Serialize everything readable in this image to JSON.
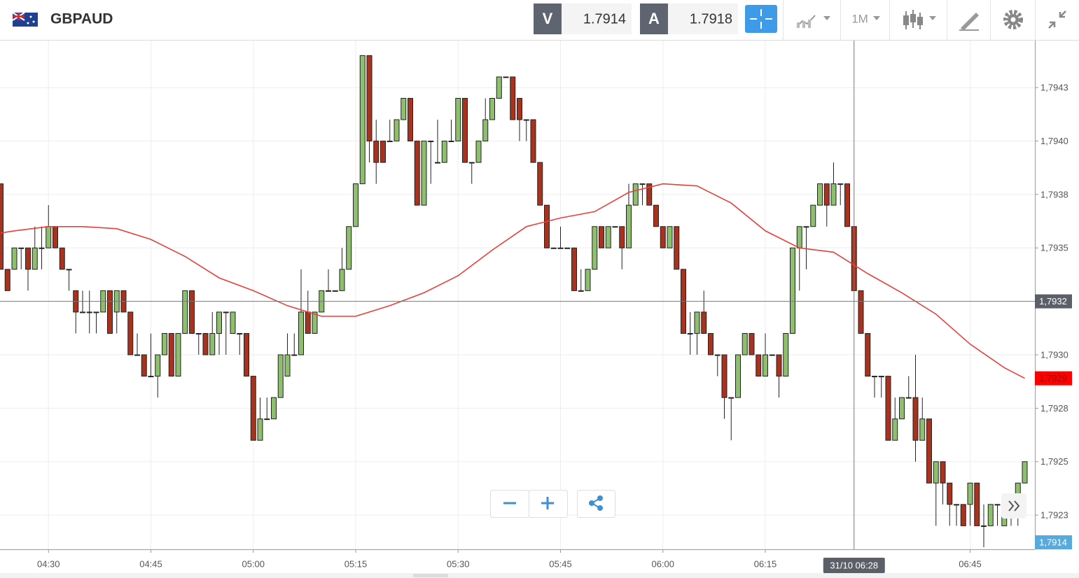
{
  "header": {
    "symbol": "GBPAUD",
    "sell_label": "V",
    "sell": "1.7914",
    "buy_label": "A",
    "buy": "1.7918",
    "timeframe": "1M"
  },
  "chart_data": {
    "type": "candlestick",
    "up_color": "#8dbf6e",
    "down_color": "#a8321d",
    "categories": [
      "04:23",
      "04:24",
      "04:25",
      "04:26",
      "04:27",
      "04:28",
      "04:29",
      "04:30",
      "04:31",
      "04:32",
      "04:33",
      "04:34",
      "04:35",
      "04:36",
      "04:37",
      "04:38",
      "04:39",
      "04:40",
      "04:41",
      "04:42",
      "04:43",
      "04:44",
      "04:45",
      "04:46",
      "04:47",
      "04:48",
      "04:49",
      "04:50",
      "04:51",
      "04:52",
      "04:53",
      "04:54",
      "04:55",
      "04:56",
      "04:57",
      "04:58",
      "04:59",
      "05:00",
      "05:01",
      "05:02",
      "05:03",
      "05:04",
      "05:05",
      "05:06",
      "05:07",
      "05:08",
      "05:09",
      "05:10",
      "05:11",
      "05:12",
      "05:13",
      "05:14",
      "05:15",
      "05:16",
      "05:17",
      "05:18",
      "05:19",
      "05:20",
      "05:21",
      "05:22",
      "05:23",
      "05:24",
      "05:25",
      "05:26",
      "05:27",
      "05:28",
      "05:29",
      "05:30",
      "05:31",
      "05:32",
      "05:33",
      "05:34",
      "05:35",
      "05:36",
      "05:37",
      "05:38",
      "05:39",
      "05:40",
      "05:41",
      "05:42",
      "05:43",
      "05:44",
      "05:45",
      "05:46",
      "05:47",
      "05:48",
      "05:49",
      "05:50",
      "05:51",
      "05:52",
      "05:53",
      "05:54",
      "05:55",
      "05:56",
      "05:57",
      "05:58",
      "05:59",
      "06:00",
      "06:01",
      "06:02",
      "06:03",
      "06:04",
      "06:05",
      "06:06",
      "06:07",
      "06:08",
      "06:09",
      "06:10",
      "06:11",
      "06:12",
      "06:13",
      "06:14",
      "06:15",
      "06:16",
      "06:17",
      "06:18",
      "06:19",
      "06:20",
      "06:21",
      "06:22",
      "06:23",
      "06:24",
      "06:25",
      "06:26",
      "06:27",
      "06:28",
      "06:29",
      "06:30",
      "06:31",
      "06:32",
      "06:33",
      "06:34",
      "06:35",
      "06:36",
      "06:37",
      "06:38",
      "06:39",
      "06:40",
      "06:41",
      "06:42",
      "06:43",
      "06:44",
      "06:45",
      "06:46",
      "06:47",
      "06:48",
      "06:49",
      "06:50",
      "06:51",
      "06:52",
      "06:53"
    ],
    "open": [
      1.7938,
      1.7934,
      1.7934,
      1.7935,
      1.7935,
      1.7934,
      1.7935,
      1.7935,
      1.7936,
      1.7935,
      1.7934,
      1.7933,
      1.7932,
      1.7932,
      1.7932,
      1.7932,
      1.7933,
      1.7932,
      1.7933,
      1.7932,
      1.793,
      1.793,
      1.7929,
      1.7929,
      1.793,
      1.7931,
      1.7929,
      1.7931,
      1.7933,
      1.7931,
      1.7931,
      1.793,
      1.7931,
      1.7932,
      1.7931,
      1.7931,
      1.7931,
      1.7929,
      1.7926,
      1.7927,
      1.7927,
      1.7928,
      1.7929,
      1.793,
      1.793,
      1.7932,
      1.7931,
      1.7932,
      1.7933,
      1.7933,
      1.7933,
      1.7934,
      1.7936,
      1.7938,
      1.7944,
      1.794,
      1.794,
      1.794,
      1.794,
      1.7941,
      1.7942,
      1.794,
      1.7937,
      1.794,
      1.7939,
      1.7939,
      1.794,
      1.794,
      1.7942,
      1.7939,
      1.7939,
      1.794,
      1.7941,
      1.7942,
      1.7943,
      1.7943,
      1.7942,
      1.7941,
      1.7941,
      1.7939,
      1.7937,
      1.7935,
      1.7935,
      1.7935,
      1.7935,
      1.7933,
      1.7933,
      1.7934,
      1.7936,
      1.7935,
      1.7936,
      1.7936,
      1.7935,
      1.7937,
      1.7938,
      1.7938,
      1.7937,
      1.7936,
      1.7935,
      1.7936,
      1.7934,
      1.7931,
      1.7931,
      1.7932,
      1.7931,
      1.793,
      1.793,
      1.7928,
      1.7928,
      1.793,
      1.7931,
      1.793,
      1.7929,
      1.793,
      1.793,
      1.7929,
      1.7931,
      1.7935,
      1.7936,
      1.7936,
      1.7937,
      1.7938,
      1.7937,
      1.7938,
      1.7938,
      1.7936,
      1.7933,
      1.7931,
      1.7929,
      1.7929,
      1.7929,
      1.7926,
      1.7927,
      1.7928,
      1.7928,
      1.7926,
      1.7927,
      1.7924,
      1.7925,
      1.7924,
      1.7923,
      1.7923,
      1.7923,
      1.7924,
      1.7922,
      1.7922,
      1.7923,
      1.7922,
      1.7923,
      1.7923,
      1.7924
    ],
    "high": [
      1.7938,
      1.7934,
      1.7935,
      1.7935,
      1.7935,
      1.7936,
      1.7936,
      1.7937,
      1.7936,
      1.7935,
      1.7934,
      1.7933,
      1.7933,
      1.7933,
      1.7932,
      1.7933,
      1.7933,
      1.7933,
      1.7933,
      1.7932,
      1.7931,
      1.793,
      1.7931,
      1.793,
      1.7931,
      1.7931,
      1.7931,
      1.7933,
      1.7933,
      1.7931,
      1.7931,
      1.7932,
      1.7932,
      1.7932,
      1.7932,
      1.7931,
      1.7931,
      1.7929,
      1.7928,
      1.7928,
      1.7928,
      1.793,
      1.7931,
      1.7931,
      1.7934,
      1.7933,
      1.7932,
      1.7933,
      1.7934,
      1.7933,
      1.7935,
      1.7936,
      1.7938,
      1.7944,
      1.7944,
      1.7941,
      1.794,
      1.7941,
      1.7941,
      1.7942,
      1.7942,
      1.794,
      1.794,
      1.794,
      1.7941,
      1.794,
      1.7941,
      1.7942,
      1.7942,
      1.7939,
      1.794,
      1.7942,
      1.7942,
      1.7943,
      1.7943,
      1.7943,
      1.7942,
      1.7941,
      1.7941,
      1.7939,
      1.7937,
      1.7935,
      1.7936,
      1.7935,
      1.7935,
      1.7934,
      1.7934,
      1.7936,
      1.7936,
      1.7936,
      1.7936,
      1.7936,
      1.7938,
      1.7938,
      1.7938,
      1.7938,
      1.7937,
      1.7936,
      1.7936,
      1.7936,
      1.7934,
      1.7932,
      1.7932,
      1.7933,
      1.7931,
      1.793,
      1.793,
      1.7928,
      1.793,
      1.7931,
      1.7931,
      1.793,
      1.7931,
      1.793,
      1.793,
      1.7931,
      1.7935,
      1.7936,
      1.7936,
      1.7937,
      1.7938,
      1.7938,
      1.7939,
      1.7938,
      1.7938,
      1.7936,
      1.7933,
      1.7931,
      1.7929,
      1.7929,
      1.7929,
      1.7928,
      1.7928,
      1.7929,
      1.793,
      1.7928,
      1.7927,
      1.7925,
      1.7925,
      1.7924,
      1.7923,
      1.7923,
      1.7924,
      1.7924,
      1.7923,
      1.7923,
      1.7923,
      1.7923,
      1.7923,
      1.7924,
      1.7925
    ],
    "low": [
      1.7934,
      1.7933,
      1.7934,
      1.7934,
      1.7933,
      1.7934,
      1.7934,
      1.7935,
      1.7935,
      1.7934,
      1.7933,
      1.7931,
      1.7932,
      1.7931,
      1.7931,
      1.7932,
      1.7931,
      1.7931,
      1.7932,
      1.793,
      1.793,
      1.7929,
      1.7929,
      1.7928,
      1.793,
      1.7929,
      1.7929,
      1.7931,
      1.7931,
      1.793,
      1.793,
      1.793,
      1.793,
      1.793,
      1.7931,
      1.793,
      1.7929,
      1.7926,
      1.7926,
      1.7927,
      1.7927,
      1.7928,
      1.7929,
      1.793,
      1.793,
      1.7931,
      1.7931,
      1.7932,
      1.7933,
      1.7933,
      1.7933,
      1.7934,
      1.7936,
      1.7938,
      1.7939,
      1.7938,
      1.7939,
      1.794,
      1.794,
      1.7941,
      1.794,
      1.7937,
      1.7937,
      1.7938,
      1.7939,
      1.7939,
      1.794,
      1.794,
      1.7939,
      1.7938,
      1.7939,
      1.794,
      1.7941,
      1.7942,
      1.7943,
      1.7941,
      1.794,
      1.794,
      1.7939,
      1.7937,
      1.7935,
      1.7935,
      1.7935,
      1.7935,
      1.7933,
      1.7933,
      1.7933,
      1.7934,
      1.7935,
      1.7935,
      1.7936,
      1.7934,
      1.7935,
      1.7937,
      1.7937,
      1.7937,
      1.7936,
      1.7935,
      1.7935,
      1.7934,
      1.7931,
      1.793,
      1.793,
      1.7931,
      1.793,
      1.7929,
      1.7927,
      1.7926,
      1.7928,
      1.793,
      1.793,
      1.7929,
      1.7929,
      1.793,
      1.7928,
      1.7929,
      1.7931,
      1.7933,
      1.7934,
      1.7936,
      1.7937,
      1.7936,
      1.7937,
      1.7937,
      1.7936,
      1.7933,
      1.7931,
      1.7929,
      1.7928,
      1.7928,
      1.7926,
      1.7926,
      1.7927,
      1.7928,
      1.7925,
      1.7926,
      1.7924,
      1.7922,
      1.7923,
      1.7922,
      1.7922,
      1.7922,
      1.7922,
      1.7922,
      1.7921,
      1.7922,
      1.7922,
      1.7922,
      1.7922,
      1.7922,
      1.7924
    ],
    "close": [
      1.7934,
      1.7933,
      1.7935,
      1.7935,
      1.7934,
      1.7935,
      1.7935,
      1.7936,
      1.7935,
      1.7934,
      1.7934,
      1.7932,
      1.7932,
      1.7932,
      1.7932,
      1.7933,
      1.7931,
      1.7933,
      1.7932,
      1.793,
      1.793,
      1.7929,
      1.7929,
      1.793,
      1.7931,
      1.7929,
      1.7931,
      1.7933,
      1.7931,
      1.7931,
      1.793,
      1.7931,
      1.7932,
      1.7932,
      1.7932,
      1.7931,
      1.7929,
      1.7926,
      1.7927,
      1.7927,
      1.7928,
      1.793,
      1.793,
      1.793,
      1.7932,
      1.7931,
      1.7932,
      1.7933,
      1.7933,
      1.7933,
      1.7934,
      1.7936,
      1.7938,
      1.7944,
      1.794,
      1.7939,
      1.7939,
      1.794,
      1.7941,
      1.7942,
      1.794,
      1.7937,
      1.794,
      1.794,
      1.7939,
      1.794,
      1.794,
      1.7942,
      1.7939,
      1.7939,
      1.794,
      1.7941,
      1.7942,
      1.7943,
      1.7943,
      1.7941,
      1.7941,
      1.7941,
      1.7939,
      1.7937,
      1.7935,
      1.7935,
      1.7935,
      1.7935,
      1.7933,
      1.7933,
      1.7934,
      1.7936,
      1.7935,
      1.7936,
      1.7936,
      1.7935,
      1.7937,
      1.7938,
      1.7938,
      1.7937,
      1.7936,
      1.7935,
      1.7936,
      1.7934,
      1.7931,
      1.7931,
      1.7932,
      1.7931,
      1.793,
      1.793,
      1.7928,
      1.7928,
      1.793,
      1.7931,
      1.793,
      1.7929,
      1.793,
      1.793,
      1.7929,
      1.7931,
      1.7935,
      1.7936,
      1.7936,
      1.7937,
      1.7938,
      1.7937,
      1.7938,
      1.7938,
      1.7936,
      1.7933,
      1.7931,
      1.7929,
      1.7929,
      1.7929,
      1.7926,
      1.7927,
      1.7928,
      1.7928,
      1.7926,
      1.7927,
      1.7924,
      1.7925,
      1.7924,
      1.7923,
      1.7923,
      1.7922,
      1.7924,
      1.7922,
      1.7922,
      1.7923,
      1.7923,
      1.7923,
      1.7923,
      1.7924,
      1.7925
    ],
    "ma": {
      "color": "#e8413b",
      "x": [
        "04:23",
        "04:25",
        "04:30",
        "04:35",
        "04:40",
        "04:45",
        "04:50",
        "04:55",
        "05:00",
        "05:05",
        "05:10",
        "05:15",
        "05:20",
        "05:25",
        "05:30",
        "05:35",
        "05:40",
        "05:45",
        "05:50",
        "05:55",
        "06:00",
        "06:05",
        "06:10",
        "06:15",
        "06:20",
        "06:25",
        "06:30",
        "06:35",
        "06:40",
        "06:45",
        "06:50",
        "06:53"
      ],
      "values": [
        1.79357,
        1.79358,
        1.7936,
        1.7936,
        1.79359,
        1.79354,
        1.79346,
        1.79336,
        1.7933,
        1.79323,
        1.79318,
        1.79318,
        1.79323,
        1.79329,
        1.79337,
        1.79349,
        1.7936,
        1.79364,
        1.79367,
        1.79376,
        1.7938,
        1.79379,
        1.79371,
        1.79358,
        1.7935,
        1.79348,
        1.79338,
        1.79329,
        1.79319,
        1.79305,
        1.79294,
        1.79289
      ],
      "last_label": "1,7929"
    },
    "ylim": [
      1.79209,
      1.79447
    ],
    "yticks": [
      {
        "value": 1.79225,
        "label": "1,7923"
      },
      {
        "value": 1.7925,
        "label": "1,7925"
      },
      {
        "value": 1.79275,
        "label": "1,7928"
      },
      {
        "value": 1.793,
        "label": "1,7930"
      },
      {
        "value": 1.7935,
        "label": "1,7935"
      },
      {
        "value": 1.79375,
        "label": "1,7938"
      },
      {
        "value": 1.794,
        "label": "1,7940"
      },
      {
        "value": 1.79425,
        "label": "1,7943"
      }
    ],
    "xticks": [
      "04:30",
      "04:45",
      "05:00",
      "05:15",
      "05:30",
      "05:45",
      "06:00",
      "06:15",
      "06:45"
    ],
    "grid": true,
    "crosshair": {
      "x": "06:28",
      "x_label": "31/10 06:28",
      "y": {
        "value": 1.79325,
        "label": "1,7932"
      }
    },
    "price_tag": "1,7914"
  }
}
